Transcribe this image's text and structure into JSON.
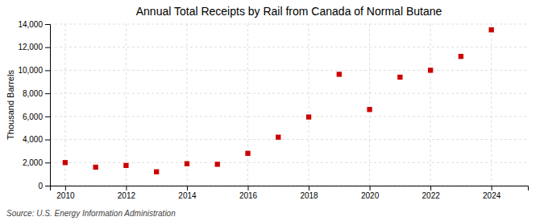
{
  "chart_data": {
    "type": "scatter",
    "title": "Annual Total Receipts by Rail from Canada of Normal Butane",
    "ylabel": "Thousand Barrels",
    "annotation": "Source: U.S. Energy Information Administration",
    "x": [
      2010,
      2011,
      2012,
      2013,
      2014,
      2015,
      2016,
      2017,
      2018,
      2019,
      2020,
      2021,
      2022,
      2023,
      2024
    ],
    "values": [
      2000,
      1600,
      1750,
      1200,
      1900,
      1850,
      2800,
      4200,
      5950,
      9650,
      6600,
      9400,
      10000,
      11200,
      13500
    ],
    "color": "#cc0000",
    "marker": "square",
    "xlim": [
      2009.5,
      2025.2
    ],
    "ylim": [
      0,
      14000
    ],
    "xticks": [
      2010,
      2012,
      2014,
      2016,
      2018,
      2020,
      2022,
      2024
    ],
    "yticks": [
      0,
      {
        "value": 2000,
        "label": "2,000"
      },
      {
        "value": 4000,
        "label": "4,000"
      },
      {
        "value": 6000,
        "label": "6,000"
      },
      {
        "value": 8000,
        "label": "8,000"
      },
      {
        "value": 10000,
        "label": "10,000"
      },
      {
        "value": 12000,
        "label": "12,000"
      },
      {
        "value": 14000,
        "label": "14,000"
      }
    ],
    "grid": true
  }
}
